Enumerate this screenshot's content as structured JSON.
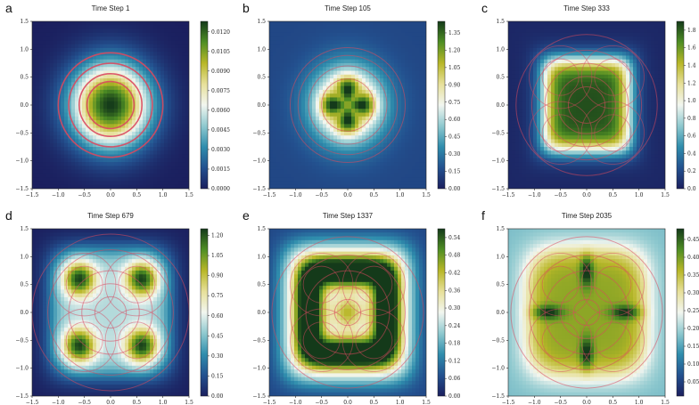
{
  "chart_data": [
    {
      "panel_label": "a",
      "title": "Time Step 1",
      "type": "heatmap",
      "x_ticks": [
        "−1.5",
        "−1.0",
        "−0.5",
        "0.0",
        "0.5",
        "1.0",
        "1.5"
      ],
      "y_ticks": [
        "1.5",
        "1.0",
        "0.5",
        "0.0",
        "−0.5",
        "−1.0",
        "−1.5"
      ],
      "xlim": [
        -1.5,
        1.5
      ],
      "ylim": [
        -1.5,
        1.5
      ],
      "colorbar_ticks": [
        "0.0120",
        "0.0105",
        "0.0090",
        "0.0075",
        "0.0060",
        "0.0045",
        "0.0030",
        "0.0015",
        "0.0000"
      ],
      "colorbar_range": [
        0,
        0.0128
      ],
      "pattern": "single central peak",
      "contour_radii": [
        0.45,
        0.6,
        0.8,
        1.0
      ]
    },
    {
      "panel_label": "b",
      "title": "Time Step 105",
      "type": "heatmap",
      "x_ticks": [
        "−1.5",
        "−1.0",
        "−0.5",
        "0.0",
        "0.5",
        "1.0",
        "1.5"
      ],
      "y_ticks": [
        "1.5",
        "1.0",
        "0.5",
        "0.0",
        "−0.5",
        "−1.0",
        "−1.5"
      ],
      "xlim": [
        -1.5,
        1.5
      ],
      "ylim": [
        -1.5,
        1.5
      ],
      "colorbar_ticks": [
        "1.35",
        "1.20",
        "1.05",
        "0.90",
        "0.75",
        "0.60",
        "0.45",
        "0.30",
        "0.15",
        "0.00"
      ],
      "colorbar_range": [
        0,
        1.45
      ],
      "pattern": "central peak with four lobes",
      "contour_radii": [
        0.5,
        0.75,
        0.95,
        1.1
      ]
    },
    {
      "panel_label": "c",
      "title": "Time Step 333",
      "type": "heatmap",
      "x_ticks": [
        "−1.5",
        "−1.0",
        "−0.5",
        "0.0",
        "0.5",
        "1.0",
        "1.5"
      ],
      "y_ticks": [
        "1.5",
        "1.0",
        "0.5",
        "0.0",
        "−0.5",
        "−1.0",
        "−1.5"
      ],
      "xlim": [
        -1.5,
        1.5
      ],
      "ylim": [
        -1.5,
        1.5
      ],
      "colorbar_ticks": [
        "1.8",
        "1.6",
        "1.4",
        "1.2",
        "1.0",
        "0.8",
        "0.6",
        "0.4",
        "0.2",
        "0.0"
      ],
      "colorbar_range": [
        0,
        1.9
      ],
      "pattern": "rounded square plateau",
      "contour_radii": [
        0.35,
        0.55,
        0.8,
        1.05,
        1.35
      ]
    },
    {
      "panel_label": "d",
      "title": "Time Step 679",
      "type": "heatmap",
      "x_ticks": [
        "−1.5",
        "−1.0",
        "−0.5",
        "0.0",
        "0.5",
        "1.0",
        "1.5"
      ],
      "y_ticks": [
        "1.5",
        "1.0",
        "0.5",
        "0.0",
        "−0.5",
        "−1.0",
        "−1.5"
      ],
      "xlim": [
        -1.5,
        1.5
      ],
      "ylim": [
        -1.5,
        1.5
      ],
      "colorbar_ticks": [
        "1.20",
        "1.05",
        "0.90",
        "0.75",
        "0.60",
        "0.45",
        "0.30",
        "0.15",
        "0.00"
      ],
      "colorbar_range": [
        0,
        1.25
      ],
      "pattern": "four corner peaks",
      "contour_radii": [
        0.3,
        0.55,
        0.8,
        1.2,
        1.5
      ]
    },
    {
      "panel_label": "e",
      "title": "Time Step 1337",
      "type": "heatmap",
      "x_ticks": [
        "−1.5",
        "−1.0",
        "−0.5",
        "0.0",
        "0.5",
        "1.0",
        "1.5"
      ],
      "y_ticks": [
        "1.5",
        "1.0",
        "0.5",
        "0.0",
        "−0.5",
        "−1.0",
        "−1.5"
      ],
      "xlim": [
        -1.5,
        1.5
      ],
      "ylim": [
        -1.5,
        1.5
      ],
      "colorbar_ticks": [
        "0.54",
        "0.48",
        "0.42",
        "0.36",
        "0.30",
        "0.24",
        "0.18",
        "0.12",
        "0.06",
        "0.00"
      ],
      "colorbar_range": [
        0,
        0.57
      ],
      "pattern": "square ring with center",
      "contour_radii": [
        0.25,
        0.5,
        0.8,
        1.1,
        1.45
      ]
    },
    {
      "panel_label": "f",
      "title": "Time Step 2035",
      "type": "heatmap",
      "x_ticks": [
        "−1.5",
        "−1.0",
        "−0.5",
        "0.0",
        "0.5",
        "1.0",
        "1.5"
      ],
      "y_ticks": [
        "1.5",
        "1.0",
        "0.5",
        "0.0",
        "−0.5",
        "−1.0",
        "−1.5"
      ],
      "xlim": [
        -1.5,
        1.5
      ],
      "ylim": [
        -1.5,
        1.5
      ],
      "colorbar_ticks": [
        "0.45",
        "0.40",
        "0.35",
        "0.30",
        "0.25",
        "0.20",
        "0.15",
        "0.10",
        "0.05"
      ],
      "colorbar_range": [
        0.01,
        0.48
      ],
      "pattern": "broad plateau with cross",
      "contour_radii": [
        0.25,
        0.5,
        0.8,
        1.1,
        1.45
      ]
    }
  ],
  "colors": {
    "colormap": [
      "#1b1f5e",
      "#23518f",
      "#2f8dad",
      "#8fc9cf",
      "#f2f6f0",
      "#e7e09a",
      "#b8b728",
      "#4f8e24",
      "#143a1a"
    ],
    "contour": "#d9485f"
  }
}
